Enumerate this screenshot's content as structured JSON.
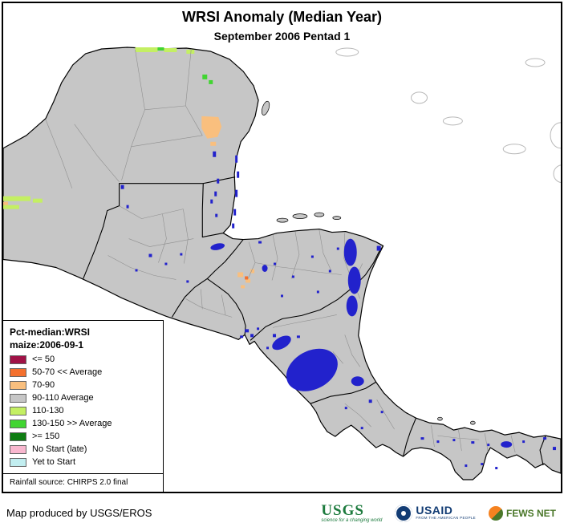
{
  "header": {
    "title": "WRSI Anomaly (Median Year)",
    "subtitle": "September 2006 Pentad 1"
  },
  "legend": {
    "heading_line1": "Pct-median:WRSI",
    "heading_line2": "maize:2006-09-1",
    "items": [
      {
        "label": "<= 50",
        "color": "#a01246"
      },
      {
        "label": "50-70 << Average",
        "color": "#f4702e"
      },
      {
        "label": "70-90",
        "color": "#f9bf7e"
      },
      {
        "label": "90-110 Average",
        "color": "#c6c6c6"
      },
      {
        "label": "110-130",
        "color": "#c4ef63"
      },
      {
        "label": "130-150 >> Average",
        "color": "#41d531"
      },
      {
        "label": ">= 150",
        "color": "#0e7d12"
      },
      {
        "label": "No Start (late)",
        "color": "#f8b7cf"
      },
      {
        "label": "Yet to Start",
        "color": "#c2eef0"
      }
    ],
    "source_note": "Rainfall source: CHIRPS 2.0 final"
  },
  "map": {
    "colors": {
      "land": "#c6c6c6",
      "water": "#2222cc",
      "ocean": "#ffffff",
      "border": "#000000",
      "admin": "#8f8f8f"
    }
  },
  "footer": {
    "credit": "Map produced by USGS/EROS",
    "logos": {
      "usgs": {
        "name": "USGS",
        "tagline": "science for a changing world"
      },
      "usaid": {
        "name": "USAID",
        "tagline": "FROM THE AMERICAN PEOPLE"
      },
      "fewsnet": {
        "name": "FEWS NET"
      }
    }
  }
}
